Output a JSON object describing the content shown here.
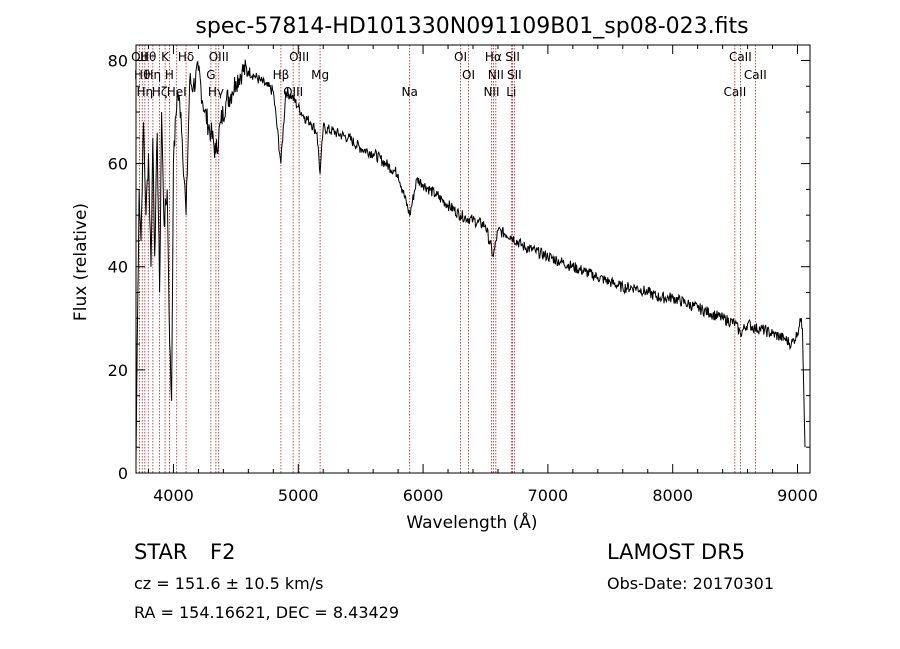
{
  "chart_data": {
    "type": "line",
    "title": "spec-57814-HD101330N091109B01_sp08-023.fits",
    "xlabel": "Wavelength (Å)",
    "ylabel": "Flux (relative)",
    "xlim": [
      3700,
      9100
    ],
    "ylim": [
      0,
      83
    ],
    "xticks": [
      "4000",
      "5000",
      "6000",
      "7000",
      "8000",
      "9000"
    ],
    "yticks": [
      "0",
      "20",
      "40",
      "60",
      "80"
    ],
    "line_color": "#000000",
    "marker_color": "#b22222",
    "spectrum": {
      "x": [
        3700,
        3710,
        3725,
        3740,
        3760,
        3780,
        3800,
        3820,
        3835,
        3850,
        3870,
        3889,
        3905,
        3925,
        3950,
        3970,
        3985,
        4000,
        4030,
        4060,
        4101,
        4130,
        4160,
        4200,
        4250,
        4300,
        4340,
        4380,
        4420,
        4470,
        4500,
        4550,
        4600,
        4650,
        4700,
        4750,
        4800,
        4861,
        4900,
        4950,
        5000,
        5050,
        5100,
        5150,
        5175,
        5200,
        5300,
        5400,
        5500,
        5600,
        5700,
        5800,
        5893,
        5950,
        6000,
        6100,
        6200,
        6300,
        6400,
        6500,
        6563,
        6600,
        6700,
        6800,
        6900,
        7000,
        7100,
        7200,
        7300,
        7400,
        7500,
        7600,
        7700,
        7800,
        7900,
        8000,
        8100,
        8200,
        8300,
        8400,
        8500,
        8542,
        8600,
        8662,
        8700,
        8800,
        8900,
        8950,
        9000,
        9020,
        9040,
        9060
      ],
      "y": [
        2,
        25,
        55,
        45,
        68,
        50,
        62,
        40,
        65,
        42,
        66,
        35,
        70,
        48,
        55,
        25,
        14,
        60,
        74,
        70,
        50,
        76,
        75,
        78,
        70,
        66,
        62,
        68,
        72,
        74,
        76,
        78,
        78,
        77,
        76,
        75,
        74,
        60,
        74,
        73,
        71,
        69,
        68,
        66,
        58,
        67,
        66,
        65,
        63,
        62,
        60,
        58,
        50,
        57,
        56,
        54,
        52,
        50,
        49,
        48,
        42,
        47,
        46,
        44,
        43,
        42,
        41,
        40,
        39,
        38,
        37,
        36,
        36,
        35,
        34,
        34,
        33,
        32,
        31,
        30,
        29,
        27,
        29,
        28,
        28,
        27,
        26,
        25,
        27,
        30,
        28,
        5
      ]
    },
    "lines": [
      {
        "wave": 3727,
        "label": "OII"
      },
      {
        "wave": 3750,
        "label": "Hθ"
      },
      {
        "wave": 3771,
        "label": "Hη"
      },
      {
        "wave": 3798,
        "label": "Hθ"
      },
      {
        "wave": 3835,
        "label": "Hη"
      },
      {
        "wave": 3889,
        "label": "Hζ"
      },
      {
        "wave": 3933,
        "label": "K"
      },
      {
        "wave": 3968,
        "label": "H"
      },
      {
        "wave": 4026,
        "label": "HeI"
      },
      {
        "wave": 4101,
        "label": "Hδ"
      },
      {
        "wave": 4300,
        "label": "G"
      },
      {
        "wave": 4340,
        "label": "Hγ"
      },
      {
        "wave": 4363,
        "label": "OIII"
      },
      {
        "wave": 4861,
        "label": "Hβ"
      },
      {
        "wave": 4959,
        "label": "OIII"
      },
      {
        "wave": 5007,
        "label": "OIII"
      },
      {
        "wave": 5175,
        "label": "Mg"
      },
      {
        "wave": 5893,
        "label": "Na"
      },
      {
        "wave": 6300,
        "label": "OI"
      },
      {
        "wave": 6364,
        "label": "OI"
      },
      {
        "wave": 6548,
        "label": "NII"
      },
      {
        "wave": 6563,
        "label": "Hα"
      },
      {
        "wave": 6583,
        "label": "NII"
      },
      {
        "wave": 6707,
        "label": "Li"
      },
      {
        "wave": 6717,
        "label": "SII"
      },
      {
        "wave": 6731,
        "label": "SII"
      },
      {
        "wave": 8498,
        "label": "CaII"
      },
      {
        "wave": 8542,
        "label": "CaII"
      },
      {
        "wave": 8662,
        "label": "CaII"
      }
    ]
  },
  "info": {
    "object_class": "STAR",
    "subclass": "F2",
    "survey": "LAMOST DR5",
    "cz": "cz = 151.6 ± 10.5 km/s",
    "obs_date": "Obs-Date: 20170301",
    "coords": "RA = 154.16621, DEC =   8.43429"
  }
}
